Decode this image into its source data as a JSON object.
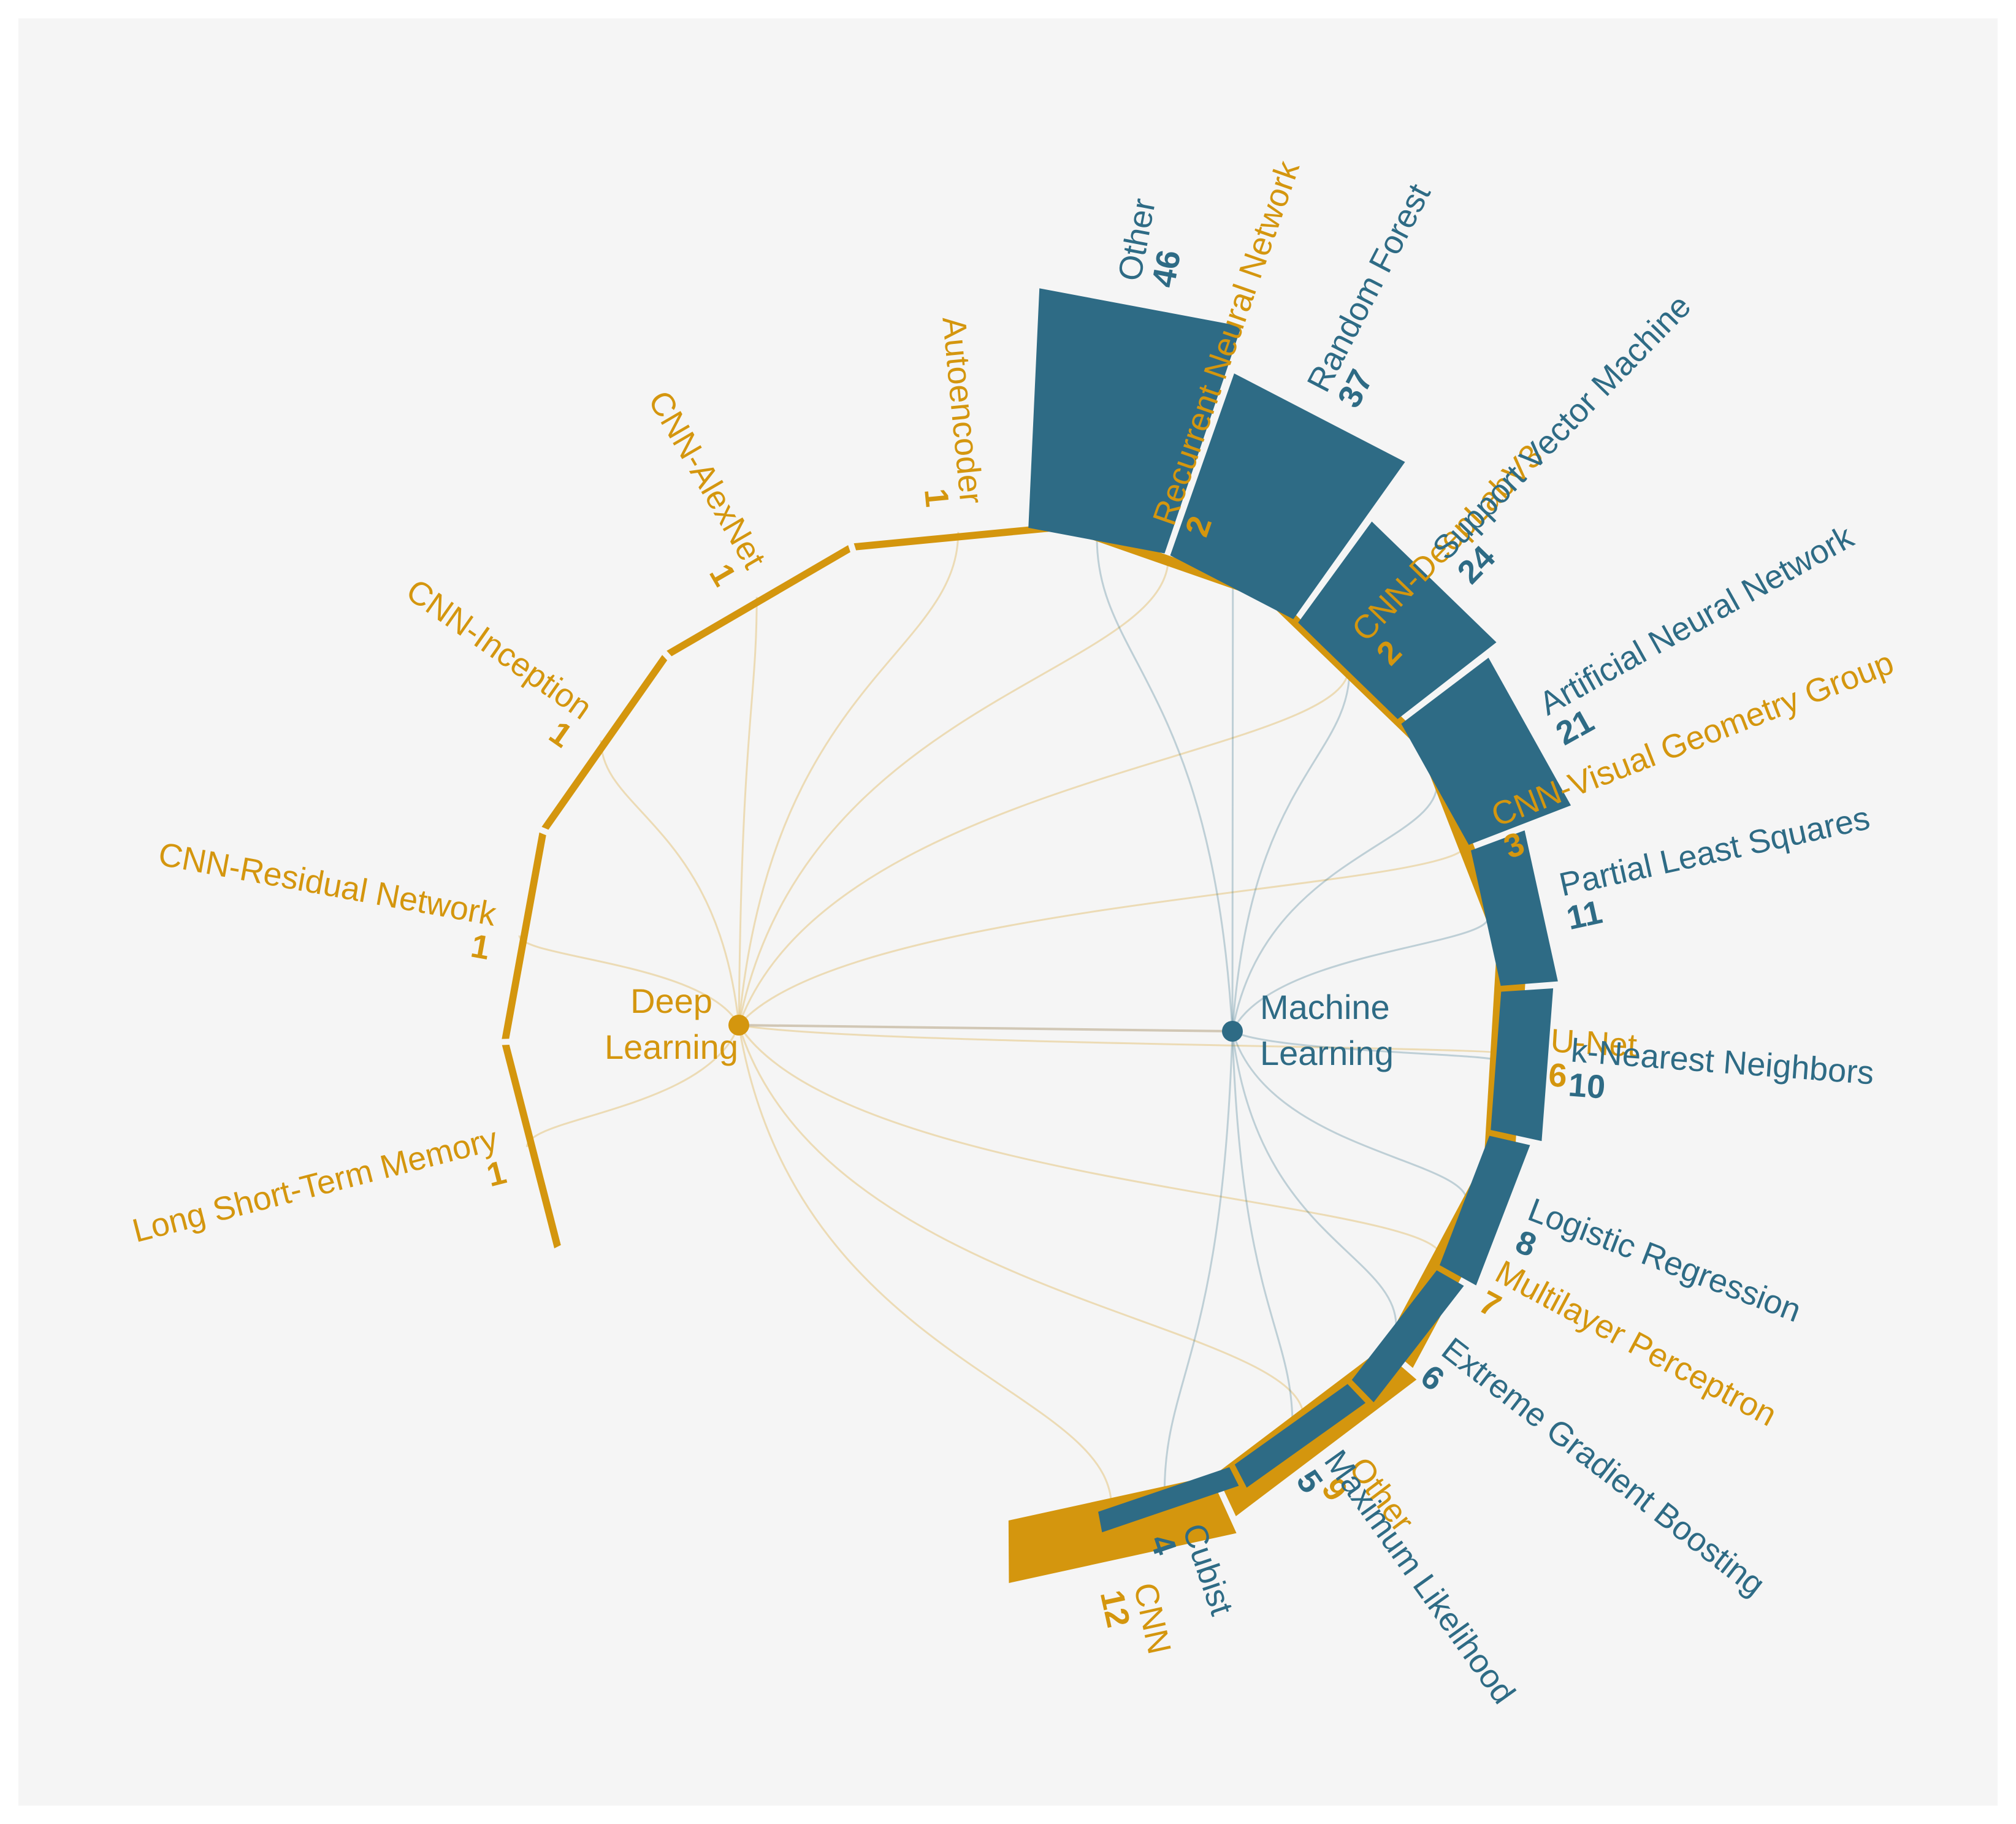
{
  "chart_data": {
    "type": "radial-bar",
    "title": "",
    "colors": {
      "Deep Learning": "#d4960e",
      "Machine Learning": "#2e6b85",
      "background": "#f5f5f5"
    },
    "groups": [
      {
        "name_lines": [
          "Deep",
          "Learning"
        ],
        "series": "Deep Learning",
        "items": [
          {
            "label": "CNN",
            "value": 12
          },
          {
            "label": "Other",
            "value": 9
          },
          {
            "label": "Multilayer Perceptron",
            "value": 7
          },
          {
            "label": "U-Net",
            "value": 6
          },
          {
            "label": "CNN-Visual Geometry Group",
            "value": 3
          },
          {
            "label": "CNN-DeepLabV3",
            "value": 2
          },
          {
            "label": "Recurrent Neural Network",
            "value": 2
          },
          {
            "label": "Autoencoder",
            "value": 1
          },
          {
            "label": "CNN-AlexNet",
            "value": 1
          },
          {
            "label": "CNN-Inception",
            "value": 1
          },
          {
            "label": "CNN-Residual Network",
            "value": 1
          },
          {
            "label": "Long Short-Term Memory",
            "value": 1
          }
        ]
      },
      {
        "name_lines": [
          "Machine",
          "Learning"
        ],
        "series": "Machine Learning",
        "items": [
          {
            "label": "Other",
            "value": 46
          },
          {
            "label": "Random Forest",
            "value": 37
          },
          {
            "label": "Support Vector Machine",
            "value": 24
          },
          {
            "label": "Artificial Neural Network",
            "value": 21
          },
          {
            "label": "Partial Least Squares",
            "value": 11
          },
          {
            "label": "k-Nearest Neighbors",
            "value": 10
          },
          {
            "label": "Logistic Regression",
            "value": 8
          },
          {
            "label": "Extreme Gradient Boosting",
            "value": 6
          },
          {
            "label": "Maximum Likelihood",
            "value": 5
          },
          {
            "label": "Cubist",
            "value": 4
          }
        ]
      }
    ]
  }
}
